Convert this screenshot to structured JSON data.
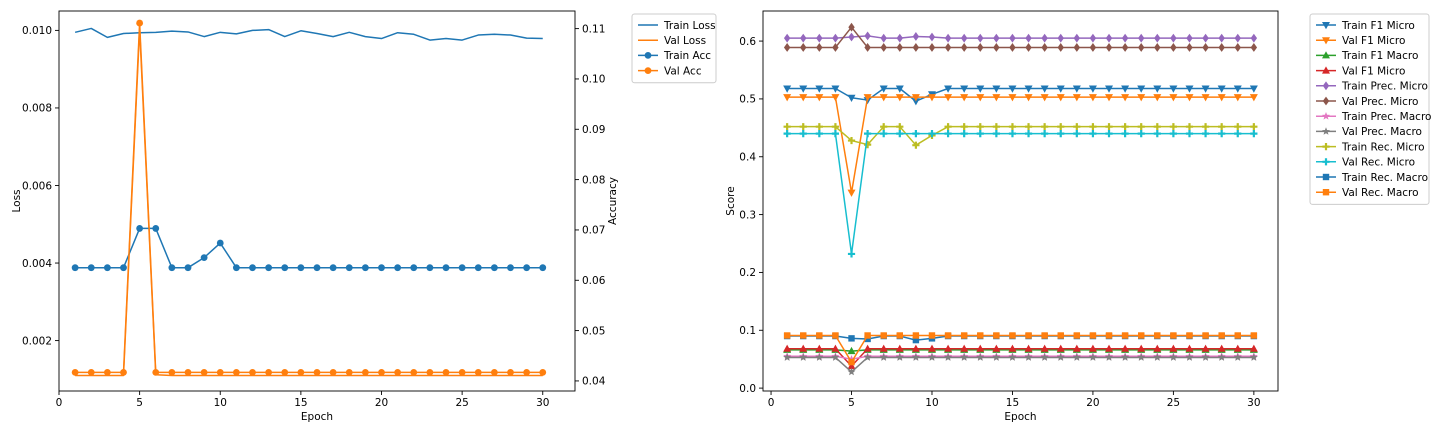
{
  "chart_data": [
    {
      "type": "line",
      "xlabel": "Epoch",
      "ylabel": "Loss",
      "y2label": "Accuracy",
      "xlim": [
        0,
        32
      ],
      "ylim": [
        0.0007,
        0.0105
      ],
      "y2lim": [
        0.038,
        0.1135
      ],
      "xticks": [
        0,
        5,
        10,
        15,
        20,
        25,
        30
      ],
      "yticks": [
        0.002,
        0.004,
        0.006,
        0.008,
        0.01
      ],
      "y2ticks": [
        0.04,
        0.05,
        0.06,
        0.07,
        0.08,
        0.09,
        0.1,
        0.11
      ],
      "legend": "outside-upper-right",
      "x": [
        1,
        2,
        3,
        4,
        5,
        6,
        7,
        8,
        9,
        10,
        11,
        12,
        13,
        14,
        15,
        16,
        17,
        18,
        19,
        20,
        21,
        22,
        23,
        24,
        25,
        26,
        27,
        28,
        29,
        30
      ],
      "series": [
        {
          "name": "Train Loss",
          "axis": "left",
          "color": "#1f77b4",
          "marker": "none",
          "values": [
            0.00995,
            0.01005,
            0.00982,
            0.00992,
            0.00994,
            0.00995,
            0.00998,
            0.00996,
            0.00984,
            0.00995,
            0.00991,
            0.01,
            0.01002,
            0.00984,
            0.00999,
            0.00992,
            0.00984,
            0.00995,
            0.00984,
            0.00979,
            0.00994,
            0.0099,
            0.00975,
            0.00979,
            0.00975,
            0.00988,
            0.0099,
            0.00988,
            0.0098,
            0.00979
          ]
        },
        {
          "name": "Val Loss",
          "axis": "left",
          "color": "#ff7f0e",
          "marker": "none",
          "values": [
            0.0011,
            0.0011,
            0.0011,
            0.0011,
            0.01005,
            0.00112,
            0.0011,
            0.0011,
            0.0011,
            0.0011,
            0.0011,
            0.0011,
            0.0011,
            0.0011,
            0.0011,
            0.0011,
            0.0011,
            0.0011,
            0.0011,
            0.0011,
            0.0011,
            0.0011,
            0.0011,
            0.0011,
            0.0011,
            0.0011,
            0.0011,
            0.0011,
            0.0011,
            0.0011
          ]
        },
        {
          "name": "Train Acc",
          "axis": "right",
          "color": "#1f77b4",
          "marker": "circle",
          "values": [
            0.0625,
            0.0625,
            0.0625,
            0.0625,
            0.0703,
            0.0703,
            0.0625,
            0.0625,
            0.0645,
            0.0674,
            0.0625,
            0.0625,
            0.0625,
            0.0625,
            0.0625,
            0.0625,
            0.0625,
            0.0625,
            0.0625,
            0.0625,
            0.0625,
            0.0625,
            0.0625,
            0.0625,
            0.0625,
            0.0625,
            0.0625,
            0.0625,
            0.0625,
            0.0625
          ]
        },
        {
          "name": "Val Acc",
          "axis": "right",
          "color": "#ff7f0e",
          "marker": "circle",
          "values": [
            0.0417,
            0.0417,
            0.0417,
            0.0417,
            0.1111,
            0.0417,
            0.0417,
            0.0417,
            0.0417,
            0.0417,
            0.0417,
            0.0417,
            0.0417,
            0.0417,
            0.0417,
            0.0417,
            0.0417,
            0.0417,
            0.0417,
            0.0417,
            0.0417,
            0.0417,
            0.0417,
            0.0417,
            0.0417,
            0.0417,
            0.0417,
            0.0417,
            0.0417,
            0.0417
          ]
        }
      ]
    },
    {
      "type": "line",
      "xlabel": "Epoch",
      "ylabel": "Score",
      "xlim": [
        -0.5,
        31.5
      ],
      "ylim": [
        -0.005,
        0.652
      ],
      "xticks": [
        0,
        5,
        10,
        15,
        20,
        25,
        30
      ],
      "yticks": [
        0.0,
        0.1,
        0.2,
        0.3,
        0.4,
        0.5,
        0.6
      ],
      "legend": "outside-upper-right",
      "x": [
        1,
        2,
        3,
        4,
        5,
        6,
        7,
        8,
        9,
        10,
        11,
        12,
        13,
        14,
        15,
        16,
        17,
        18,
        19,
        20,
        21,
        22,
        23,
        24,
        25,
        26,
        27,
        28,
        29,
        30
      ],
      "series": [
        {
          "name": "Train F1 Micro",
          "color": "#1f77b4",
          "marker": "tri_down",
          "values": [
            0.518,
            0.518,
            0.518,
            0.518,
            0.502,
            0.498,
            0.518,
            0.518,
            0.496,
            0.508,
            0.518,
            0.518,
            0.518,
            0.518,
            0.518,
            0.518,
            0.518,
            0.518,
            0.518,
            0.518,
            0.518,
            0.518,
            0.518,
            0.518,
            0.518,
            0.518,
            0.518,
            0.518,
            0.518,
            0.518
          ]
        },
        {
          "name": "Val F1 Micro",
          "color": "#ff7f0e",
          "marker": "tri_down",
          "values": [
            0.503,
            0.503,
            0.503,
            0.503,
            0.338,
            0.503,
            0.503,
            0.503,
            0.503,
            0.503,
            0.503,
            0.503,
            0.503,
            0.503,
            0.503,
            0.503,
            0.503,
            0.503,
            0.503,
            0.503,
            0.503,
            0.503,
            0.503,
            0.503,
            0.503,
            0.503,
            0.503,
            0.503,
            0.503,
            0.503
          ]
        },
        {
          "name": "Train F1 Macro",
          "color": "#2ca02c",
          "marker": "tri_up",
          "values": [
            0.066,
            0.066,
            0.066,
            0.066,
            0.064,
            0.066,
            0.066,
            0.066,
            0.066,
            0.066,
            0.066,
            0.066,
            0.066,
            0.066,
            0.066,
            0.066,
            0.066,
            0.066,
            0.066,
            0.066,
            0.066,
            0.066,
            0.066,
            0.066,
            0.066,
            0.066,
            0.066,
            0.066,
            0.066,
            0.066
          ]
        },
        {
          "name": "Val F1 Micro",
          "color": "#d62728",
          "marker": "tri_up",
          "values": [
            0.068,
            0.068,
            0.068,
            0.068,
            0.038,
            0.068,
            0.068,
            0.068,
            0.068,
            0.068,
            0.068,
            0.068,
            0.068,
            0.068,
            0.068,
            0.068,
            0.068,
            0.068,
            0.068,
            0.068,
            0.068,
            0.068,
            0.068,
            0.068,
            0.068,
            0.068,
            0.068,
            0.068,
            0.068,
            0.068
          ]
        },
        {
          "name": "Train Prec. Micro",
          "color": "#9467bd",
          "marker": "diamond",
          "values": [
            0.605,
            0.605,
            0.605,
            0.605,
            0.607,
            0.609,
            0.605,
            0.605,
            0.608,
            0.607,
            0.605,
            0.605,
            0.605,
            0.605,
            0.605,
            0.605,
            0.605,
            0.605,
            0.605,
            0.605,
            0.605,
            0.605,
            0.605,
            0.605,
            0.605,
            0.605,
            0.605,
            0.605,
            0.605,
            0.605
          ]
        },
        {
          "name": "Val Prec. Micro",
          "color": "#8c564b",
          "marker": "diamond",
          "values": [
            0.589,
            0.589,
            0.589,
            0.589,
            0.624,
            0.589,
            0.589,
            0.589,
            0.589,
            0.589,
            0.589,
            0.589,
            0.589,
            0.589,
            0.589,
            0.589,
            0.589,
            0.589,
            0.589,
            0.589,
            0.589,
            0.589,
            0.589,
            0.589,
            0.589,
            0.589,
            0.589,
            0.589,
            0.589,
            0.589
          ]
        },
        {
          "name": "Train Prec. Macro",
          "color": "#e377c2",
          "marker": "star",
          "values": [
            0.055,
            0.055,
            0.055,
            0.055,
            0.05,
            0.055,
            0.055,
            0.055,
            0.055,
            0.055,
            0.055,
            0.055,
            0.055,
            0.055,
            0.055,
            0.055,
            0.055,
            0.055,
            0.055,
            0.055,
            0.055,
            0.055,
            0.055,
            0.055,
            0.055,
            0.055,
            0.055,
            0.055,
            0.055,
            0.055
          ]
        },
        {
          "name": "Val Prec. Macro",
          "color": "#7f7f7f",
          "marker": "star",
          "values": [
            0.053,
            0.053,
            0.053,
            0.053,
            0.028,
            0.053,
            0.053,
            0.053,
            0.053,
            0.053,
            0.053,
            0.053,
            0.053,
            0.053,
            0.053,
            0.053,
            0.053,
            0.053,
            0.053,
            0.053,
            0.053,
            0.053,
            0.053,
            0.053,
            0.053,
            0.053,
            0.053,
            0.053,
            0.053,
            0.053
          ]
        },
        {
          "name": "Train Rec. Micro",
          "color": "#bcbd22",
          "marker": "plus",
          "values": [
            0.452,
            0.452,
            0.452,
            0.452,
            0.428,
            0.421,
            0.452,
            0.452,
            0.42,
            0.437,
            0.452,
            0.452,
            0.452,
            0.452,
            0.452,
            0.452,
            0.452,
            0.452,
            0.452,
            0.452,
            0.452,
            0.452,
            0.452,
            0.452,
            0.452,
            0.452,
            0.452,
            0.452,
            0.452,
            0.452
          ]
        },
        {
          "name": "Val Rec. Micro",
          "color": "#17becf",
          "marker": "plus",
          "values": [
            0.44,
            0.44,
            0.44,
            0.44,
            0.232,
            0.44,
            0.44,
            0.44,
            0.44,
            0.44,
            0.44,
            0.44,
            0.44,
            0.44,
            0.44,
            0.44,
            0.44,
            0.44,
            0.44,
            0.44,
            0.44,
            0.44,
            0.44,
            0.44,
            0.44,
            0.44,
            0.44,
            0.44,
            0.44,
            0.44
          ]
        },
        {
          "name": "Train Rec. Macro",
          "color": "#1f77b4",
          "marker": "square",
          "values": [
            0.09,
            0.09,
            0.09,
            0.09,
            0.086,
            0.085,
            0.09,
            0.09,
            0.083,
            0.086,
            0.09,
            0.09,
            0.09,
            0.09,
            0.09,
            0.09,
            0.09,
            0.09,
            0.09,
            0.09,
            0.09,
            0.09,
            0.09,
            0.09,
            0.09,
            0.09,
            0.09,
            0.09,
            0.09,
            0.09
          ]
        },
        {
          "name": "Val Rec. Macro",
          "color": "#ff7f0e",
          "marker": "square",
          "values": [
            0.091,
            0.091,
            0.091,
            0.091,
            0.045,
            0.091,
            0.091,
            0.091,
            0.091,
            0.091,
            0.091,
            0.091,
            0.091,
            0.091,
            0.091,
            0.091,
            0.091,
            0.091,
            0.091,
            0.091,
            0.091,
            0.091,
            0.091,
            0.091,
            0.091,
            0.091,
            0.091,
            0.091,
            0.091,
            0.091
          ]
        }
      ]
    }
  ]
}
